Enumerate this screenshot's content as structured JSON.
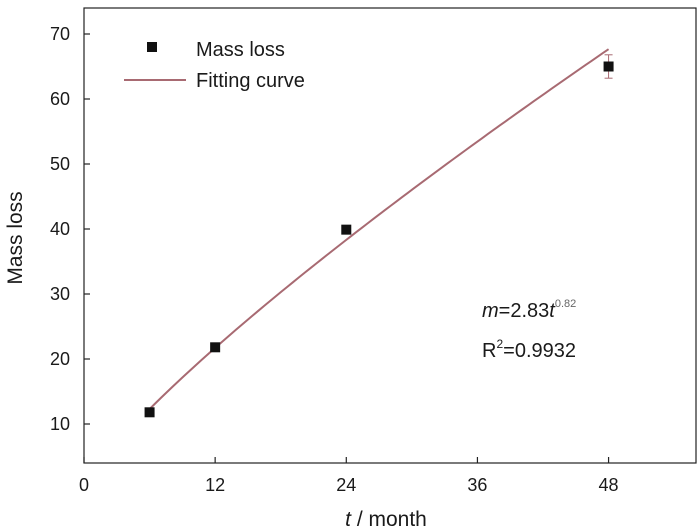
{
  "chart_data": {
    "type": "scatter",
    "xlabel_var": "t",
    "xlabel_unit": " / month",
    "ylabel": "Mass loss",
    "xlim": [
      0,
      56
    ],
    "ylim": [
      4,
      74
    ],
    "xticks": [
      0,
      12,
      24,
      36,
      48
    ],
    "yticks": [
      10,
      20,
      30,
      40,
      50,
      60,
      70
    ],
    "grid": false,
    "legend_position": "top-left",
    "series": [
      {
        "name": "Mass loss",
        "kind": "points",
        "color": "#111111",
        "points": [
          {
            "x": 6,
            "y": 11.8,
            "err": 0.6
          },
          {
            "x": 12,
            "y": 21.8,
            "err": 0.6
          },
          {
            "x": 24,
            "y": 39.9,
            "err": 0.6
          },
          {
            "x": 48,
            "y": 65.0,
            "err": 1.8
          }
        ]
      },
      {
        "name": "Fitting curve",
        "kind": "line",
        "color": "#a86a72",
        "model": {
          "a": 2.83,
          "b": 0.82
        },
        "x_range": [
          6,
          48
        ]
      }
    ],
    "annotations": {
      "eq_var": "m",
      "eq_mid": "=2.83",
      "eq_var2": "t",
      "eq_exp": "0.82",
      "r2_base": "R",
      "r2_sup": "2",
      "r2_value": "=0.9932"
    }
  }
}
